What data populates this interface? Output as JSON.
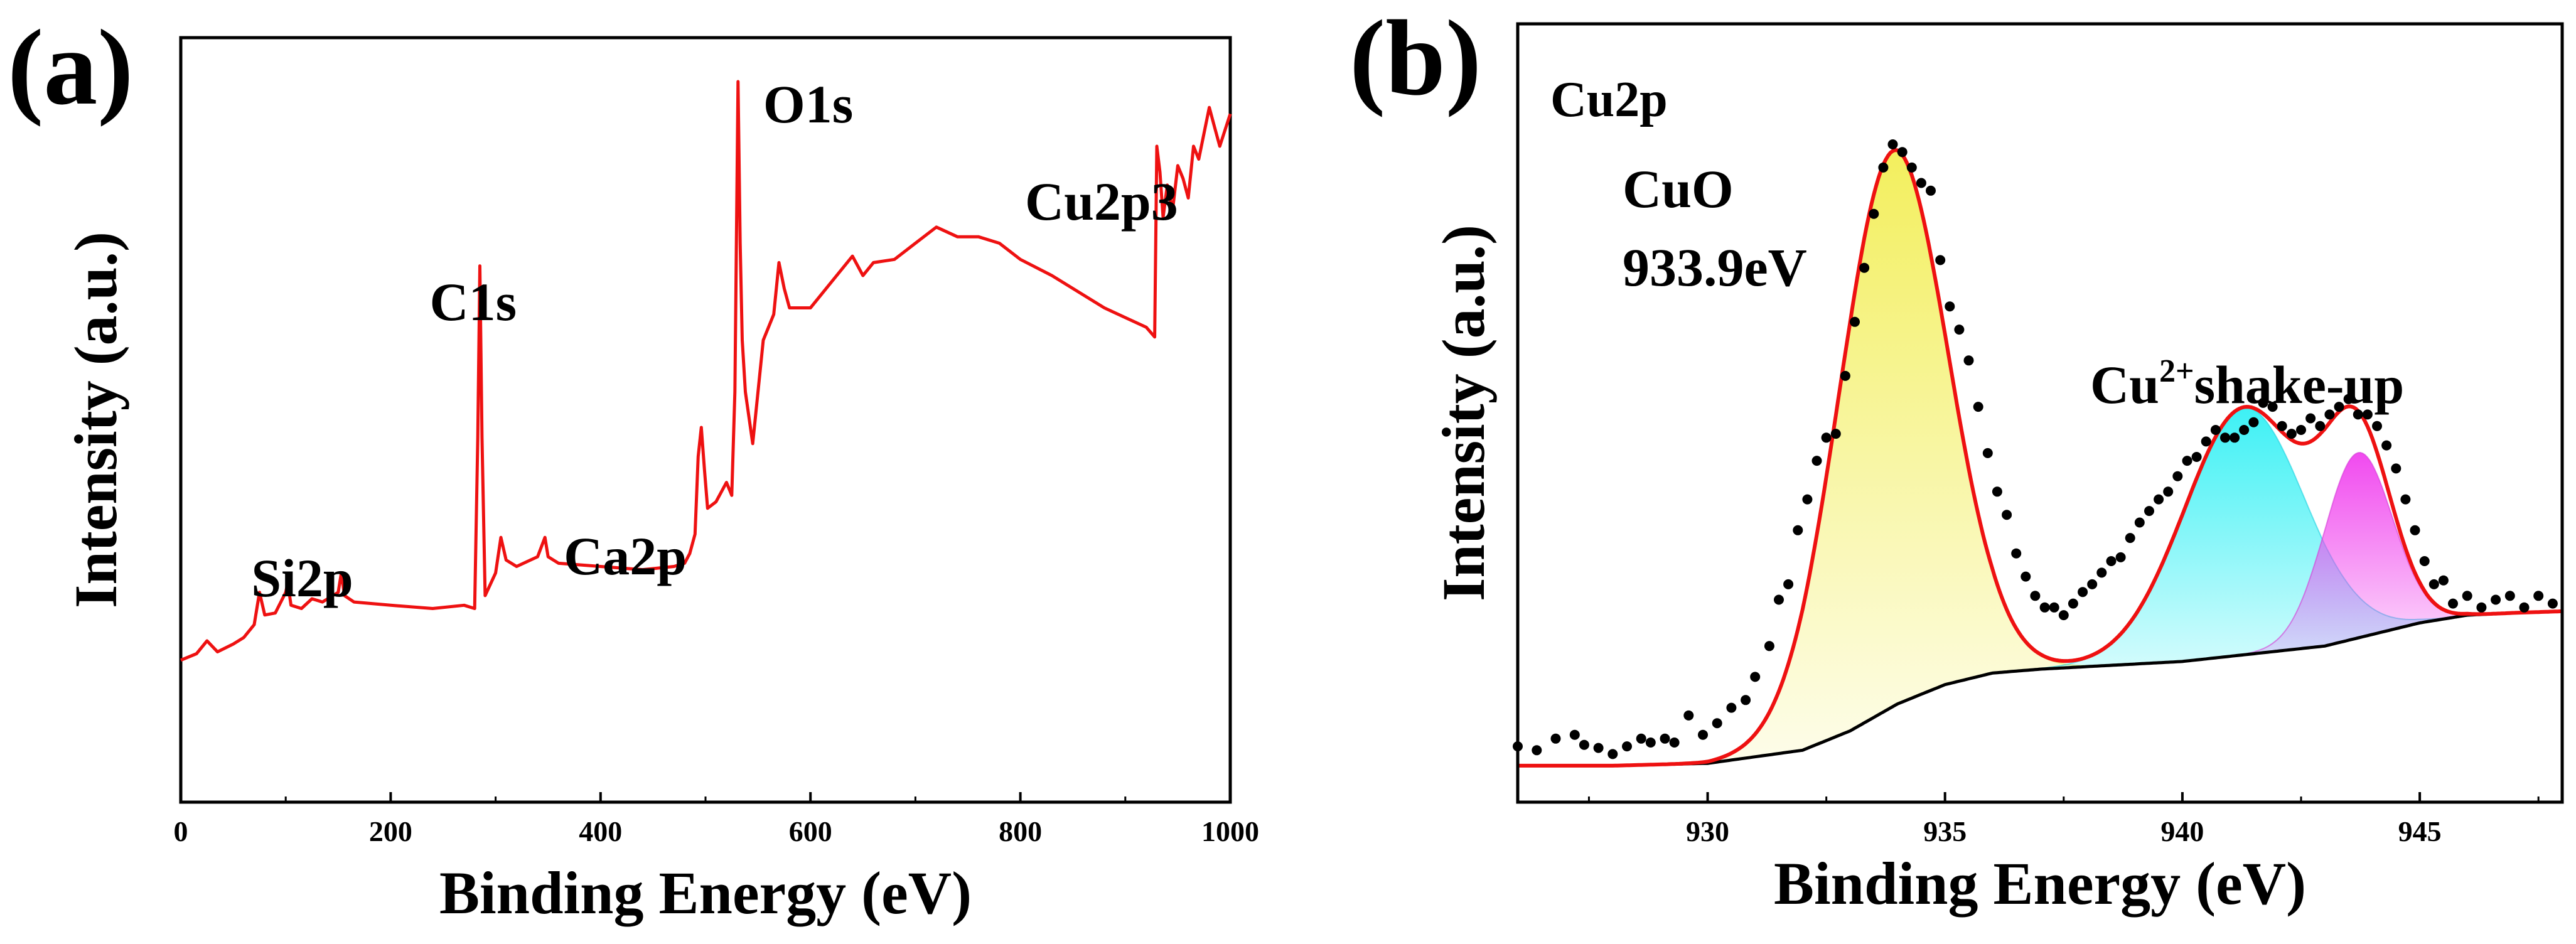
{
  "colors": {
    "survey_line": "#ee1111",
    "fit_envelope": "#ee1111",
    "background_line": "#000000",
    "data_points": "#000000",
    "peak_cuo_fill": "#f2ee55",
    "peak_shake1_fill": "#33f0f4",
    "peak_shake2_fill": "#f040ee"
  },
  "chart_data": [
    {
      "panel": "(a)",
      "type": "line",
      "title": "",
      "xlabel": "Binding Energy (eV)",
      "ylabel": "Intensity (a.u.)",
      "xlim": [
        0,
        1000
      ],
      "ylim": [
        0,
        100
      ],
      "xticks": [
        0,
        200,
        400,
        600,
        800,
        1000
      ],
      "yticks_shown": false,
      "grid": false,
      "annotations": [
        {
          "text": "Si2p",
          "x": 100
        },
        {
          "text": "C1s",
          "x": 285
        },
        {
          "text": "Ca2p",
          "x": 347
        },
        {
          "text": "O1s",
          "x": 531
        },
        {
          "text": "Cu2p3",
          "x": 933
        }
      ],
      "series": [
        {
          "name": "survey",
          "x": [
            0,
            15,
            25,
            35,
            50,
            60,
            70,
            75,
            80,
            90,
            100,
            102,
            105,
            115,
            125,
            135,
            150,
            153,
            156,
            165,
            200,
            240,
            270,
            280,
            283,
            285,
            287,
            290,
            300,
            305,
            310,
            320,
            340,
            347,
            350,
            360,
            400,
            440,
            470,
            480,
            485,
            490,
            493,
            496,
            499,
            502,
            510,
            520,
            525,
            528,
            531,
            533,
            535,
            538,
            545,
            555,
            565,
            570,
            575,
            580,
            600,
            620,
            640,
            650,
            660,
            680,
            700,
            720,
            740,
            760,
            780,
            800,
            830,
            860,
            880,
            900,
            920,
            928,
            930,
            933,
            936,
            940,
            945,
            950,
            955,
            960,
            965,
            970,
            975,
            980,
            985,
            990,
            1000
          ],
          "values": [
            10.5,
            11.5,
            13.5,
            11.8,
            13.0,
            14.0,
            16.0,
            21.0,
            17.5,
            17.8,
            21.0,
            22.5,
            19.0,
            18.5,
            20.0,
            19.5,
            21.0,
            24.0,
            20.5,
            19.5,
            19.0,
            18.5,
            19.0,
            18.5,
            45.0,
            71.5,
            45.0,
            20.5,
            24.0,
            29.5,
            26.0,
            25.0,
            26.5,
            29.5,
            26.5,
            25.5,
            25.0,
            24.5,
            25.0,
            25.5,
            27.0,
            30.0,
            42.0,
            46.5,
            40.0,
            34.0,
            35.0,
            38.0,
            36.0,
            52.0,
            100.0,
            75.0,
            60.0,
            52.0,
            44.0,
            60.0,
            64.0,
            72.0,
            68.0,
            65.0,
            65.0,
            69.0,
            73.0,
            70.0,
            72.0,
            72.5,
            75.0,
            77.5,
            76.0,
            76.0,
            75.0,
            72.5,
            70.0,
            67.0,
            65.0,
            63.5,
            62.0,
            60.5,
            90.0,
            86.0,
            79.0,
            84.0,
            80.0,
            87.0,
            85.0,
            82.0,
            90.0,
            88.0,
            92.0,
            96.0,
            93.0,
            90.0,
            95.0
          ]
        }
      ]
    },
    {
      "panel": "(b)",
      "type": "line",
      "title": "Cu2p",
      "xlabel": "Binding Energy (eV)",
      "ylabel": "Intensity (a.u.)",
      "xlim": [
        926,
        948
      ],
      "ylim": [
        0,
        100
      ],
      "xticks": [
        930,
        935,
        940,
        945
      ],
      "yticks_shown": false,
      "grid": false,
      "annotations": [
        {
          "text_line1": "CuO",
          "text_line2": "933.9eV"
        },
        {
          "text": "Cu",
          "superscript": "2+",
          "text_after": "shake-up"
        }
      ],
      "background_curve": {
        "name": "Shirley background",
        "x": [
          926,
          928,
          930,
          932,
          933,
          934,
          935,
          936,
          937,
          940,
          943,
          944,
          945,
          946,
          947,
          948
        ],
        "values": [
          0.5,
          0.5,
          0.8,
          2.5,
          5.0,
          8.5,
          11.0,
          12.5,
          13.0,
          14.0,
          16.0,
          17.5,
          19.0,
          20.0,
          20.3,
          20.5
        ]
      },
      "components": [
        {
          "name": "CuO",
          "center": 933.9,
          "fwhm": 2.7,
          "height": 72.0
        },
        {
          "name": "Cu2+ shake-up 1",
          "center": 941.3,
          "fwhm": 3.0,
          "height": 32.0
        },
        {
          "name": "Cu2+ shake-up 2",
          "center": 943.7,
          "fwhm": 1.7,
          "height": 24.0
        }
      ],
      "data_points": {
        "x": [
          926.0,
          926.4,
          926.8,
          927.2,
          927.4,
          927.7,
          928.0,
          928.3,
          928.6,
          928.8,
          929.1,
          929.3,
          929.6,
          929.9,
          930.2,
          930.5,
          930.8,
          931.0,
          931.3,
          931.5,
          931.7,
          931.9,
          932.1,
          932.3,
          932.5,
          932.7,
          932.9,
          933.1,
          933.3,
          933.5,
          933.7,
          933.9,
          934.1,
          934.3,
          934.5,
          934.7,
          934.9,
          935.1,
          935.3,
          935.5,
          935.7,
          935.9,
          936.1,
          936.3,
          936.5,
          936.7,
          936.9,
          937.1,
          937.3,
          937.5,
          937.7,
          937.9,
          938.1,
          938.3,
          938.5,
          938.7,
          938.9,
          939.1,
          939.3,
          939.5,
          939.7,
          939.9,
          940.1,
          940.3,
          940.5,
          940.7,
          940.9,
          941.1,
          941.3,
          941.5,
          941.7,
          941.9,
          942.1,
          942.3,
          942.5,
          942.7,
          942.9,
          943.1,
          943.3,
          943.5,
          943.7,
          943.9,
          944.1,
          944.3,
          944.5,
          944.7,
          944.9,
          945.1,
          945.3,
          945.5,
          945.7,
          946.0,
          946.3,
          946.6,
          946.9,
          947.2,
          947.5,
          947.8
        ],
        "values": [
          3.0,
          2.5,
          4.0,
          4.5,
          3.2,
          2.8,
          2.0,
          3.0,
          4.0,
          3.5,
          4.0,
          3.5,
          7.0,
          4.5,
          6.0,
          8.0,
          9.0,
          12.0,
          16.0,
          22.0,
          24.0,
          31.0,
          35.0,
          40.0,
          43.0,
          43.5,
          51.0,
          58.0,
          65.0,
          72.0,
          78.0,
          81.0,
          80.0,
          78.0,
          76.0,
          75.0,
          66.0,
          60.0,
          57.0,
          53.0,
          47.0,
          41.0,
          36.0,
          33.0,
          28.0,
          25.0,
          22.5,
          21.0,
          21.0,
          20.0,
          21.5,
          23.0,
          24.0,
          25.5,
          27.0,
          27.5,
          30.0,
          32.0,
          33.5,
          35.0,
          36.0,
          38.0,
          40.0,
          40.5,
          42.5,
          44.0,
          43.0,
          43.0,
          44.0,
          45.0,
          47.5,
          47.0,
          44.5,
          43.5,
          44.0,
          45.5,
          44.5,
          46.0,
          47.0,
          48.0,
          46.0,
          46.0,
          44.5,
          42.0,
          39.0,
          35.0,
          31.0,
          27.0,
          24.0,
          24.5,
          21.5,
          22.5,
          21.0,
          22.0,
          22.5,
          21.0,
          22.5,
          21.5
        ]
      }
    }
  ]
}
